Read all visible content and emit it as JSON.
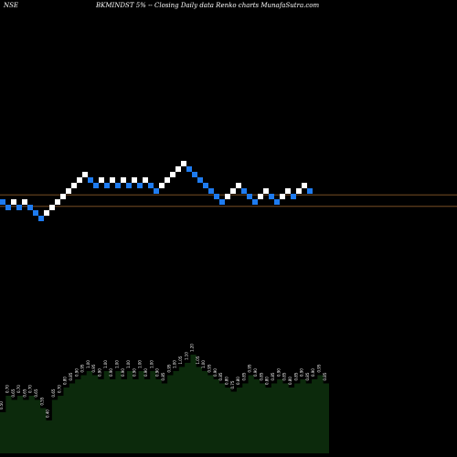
{
  "header": {
    "exchange": "NSE",
    "title": "BKMINDST 5% -- Closing Daily data Renko charts MunafaSutra.com"
  },
  "colors": {
    "background": "#000000",
    "up_brick": "#ffffff",
    "down_brick": "#1e7bf0",
    "reference_line": "#8a5a2b",
    "volume_fill": "#0c2a0c",
    "volume_label": "#ffffff"
  },
  "chart_data": [
    {
      "type": "renko",
      "reference_lines": [
        {
          "y_step": 4.3
        },
        {
          "y_step": 2.2
        }
      ],
      "bricks": [
        {
          "dir": "down",
          "level": 3
        },
        {
          "dir": "down",
          "level": 2
        },
        {
          "dir": "up",
          "level": 3
        },
        {
          "dir": "down",
          "level": 2
        },
        {
          "dir": "up",
          "level": 3
        },
        {
          "dir": "down",
          "level": 2
        },
        {
          "dir": "down",
          "level": 1
        },
        {
          "dir": "down",
          "level": 0
        },
        {
          "dir": "up",
          "level": 1
        },
        {
          "dir": "up",
          "level": 2
        },
        {
          "dir": "up",
          "level": 3
        },
        {
          "dir": "up",
          "level": 4
        },
        {
          "dir": "up",
          "level": 5
        },
        {
          "dir": "up",
          "level": 6
        },
        {
          "dir": "up",
          "level": 7
        },
        {
          "dir": "up",
          "level": 8
        },
        {
          "dir": "down",
          "level": 7
        },
        {
          "dir": "down",
          "level": 6
        },
        {
          "dir": "up",
          "level": 7
        },
        {
          "dir": "down",
          "level": 6
        },
        {
          "dir": "up",
          "level": 7
        },
        {
          "dir": "down",
          "level": 6
        },
        {
          "dir": "up",
          "level": 7
        },
        {
          "dir": "down",
          "level": 6
        },
        {
          "dir": "up",
          "level": 7
        },
        {
          "dir": "down",
          "level": 6
        },
        {
          "dir": "up",
          "level": 7
        },
        {
          "dir": "down",
          "level": 6
        },
        {
          "dir": "down",
          "level": 5
        },
        {
          "dir": "up",
          "level": 6
        },
        {
          "dir": "up",
          "level": 7
        },
        {
          "dir": "up",
          "level": 8
        },
        {
          "dir": "up",
          "level": 9
        },
        {
          "dir": "up",
          "level": 10
        },
        {
          "dir": "down",
          "level": 9
        },
        {
          "dir": "down",
          "level": 8
        },
        {
          "dir": "down",
          "level": 7
        },
        {
          "dir": "down",
          "level": 6
        },
        {
          "dir": "down",
          "level": 5
        },
        {
          "dir": "down",
          "level": 4
        },
        {
          "dir": "down",
          "level": 3
        },
        {
          "dir": "up",
          "level": 4
        },
        {
          "dir": "up",
          "level": 5
        },
        {
          "dir": "up",
          "level": 6
        },
        {
          "dir": "down",
          "level": 5
        },
        {
          "dir": "down",
          "level": 4
        },
        {
          "dir": "down",
          "level": 3
        },
        {
          "dir": "up",
          "level": 4
        },
        {
          "dir": "up",
          "level": 5
        },
        {
          "dir": "down",
          "level": 4
        },
        {
          "dir": "down",
          "level": 3
        },
        {
          "dir": "up",
          "level": 4
        },
        {
          "dir": "up",
          "level": 5
        },
        {
          "dir": "down",
          "level": 4
        },
        {
          "dir": "up",
          "level": 5
        },
        {
          "dir": "up",
          "level": 6
        },
        {
          "dir": "down",
          "level": 5
        }
      ]
    },
    {
      "type": "area",
      "labels": [
        "0.50",
        "0.70",
        "0.65",
        "0.70",
        "0.65",
        "0.70",
        "0.65",
        "0.55",
        "0.40",
        "0.65",
        "0.70",
        "0.80",
        "0.85",
        "0.90",
        "0.95",
        "1.00",
        "0.95",
        "0.90",
        "1.00",
        "0.90",
        "1.00",
        "0.90",
        "1.00",
        "0.90",
        "1.00",
        "0.90",
        "1.00",
        "0.90",
        "0.85",
        "0.95",
        "1.00",
        "1.05",
        "1.10",
        "1.20",
        "1.05",
        "1.00",
        "0.95",
        "0.90",
        "0.85",
        "0.80",
        "0.75",
        "0.80",
        "0.85",
        "0.95",
        "0.90",
        "0.85",
        "0.80",
        "0.85",
        "0.90",
        "0.85",
        "0.80",
        "0.85",
        "0.90",
        "0.85",
        "0.90",
        "0.95",
        "0.85"
      ],
      "values": [
        0.5,
        0.7,
        0.65,
        0.7,
        0.65,
        0.7,
        0.65,
        0.55,
        0.4,
        0.65,
        0.7,
        0.8,
        0.85,
        0.9,
        0.95,
        1.0,
        0.95,
        0.9,
        1.0,
        0.9,
        1.0,
        0.9,
        1.0,
        0.9,
        1.0,
        0.9,
        1.0,
        0.9,
        0.85,
        0.95,
        1.0,
        1.05,
        1.1,
        1.2,
        1.05,
        1.0,
        0.95,
        0.9,
        0.85,
        0.8,
        0.75,
        0.8,
        0.85,
        0.95,
        0.9,
        0.85,
        0.8,
        0.85,
        0.9,
        0.85,
        0.8,
        0.85,
        0.9,
        0.85,
        0.9,
        0.95,
        0.85
      ]
    }
  ]
}
